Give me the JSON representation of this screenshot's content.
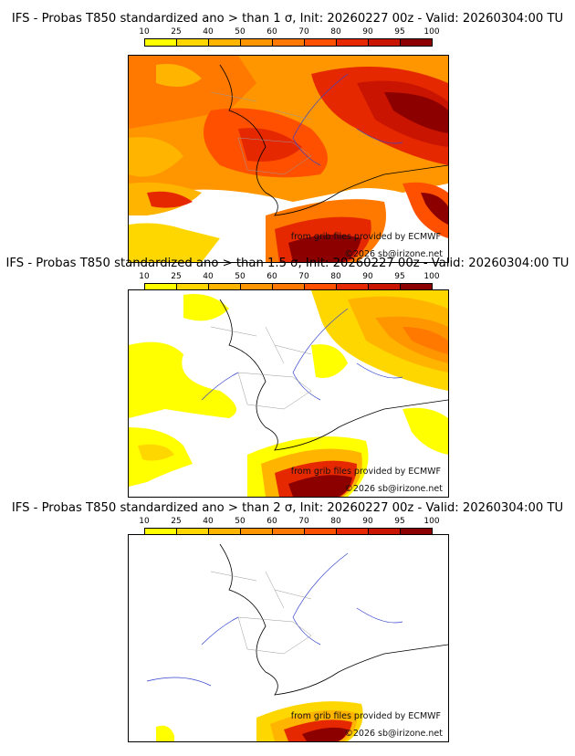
{
  "panels": [
    {
      "title": "IFS - Probas T850  standardized ano > than 1 σ, Init: 20260227 00z - Valid: 20260304:00 TU"
    },
    {
      "title": "IFS - Probas T850  standardized ano > than 1.5 σ, Init: 20260227 00z - Valid: 20260304:00 TU"
    },
    {
      "title": "IFS - Probas T850  standardized ano > than 2 σ, Init: 20260227 00z - Valid: 20260304:00 TU"
    }
  ],
  "colorbar": {
    "labels": [
      "10",
      "25",
      "40",
      "50",
      "60",
      "70",
      "80",
      "90",
      "95",
      "100"
    ],
    "colors": [
      "#ffff00",
      "#ffd700",
      "#ffb400",
      "#ff9600",
      "#ff7800",
      "#ff5000",
      "#e62800",
      "#c81400",
      "#8c0000"
    ]
  },
  "credits": {
    "source": "from grib files provided by ECMWF",
    "copyright": "©2026 sb@irizone.net"
  }
}
